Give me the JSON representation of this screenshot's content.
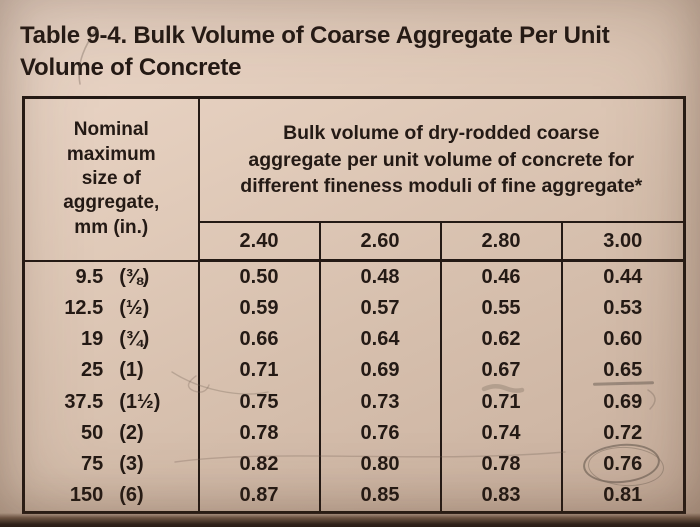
{
  "title": {
    "line1": "Table 9-4. Bulk Volume of Coarse Aggregate Per Unit",
    "line2": "Volume of Concrete"
  },
  "table": {
    "col1_header_lines": [
      "Nominal",
      "maximum",
      "size of",
      "aggregate,",
      "mm  (in.)"
    ],
    "span_header_lines": [
      "Bulk volume of dry-rodded coarse",
      "aggregate per unit volume of concrete for",
      "different fineness moduli of fine aggregate*"
    ],
    "fineness_moduli": [
      "2.40",
      "2.60",
      "2.80",
      "3.00"
    ],
    "rows": [
      {
        "size_mm": "9.5",
        "size_in": "(⅜)",
        "values": [
          "0.50",
          "0.48",
          "0.46",
          "0.44"
        ]
      },
      {
        "size_mm": "12.5",
        "size_in": "(½)",
        "values": [
          "0.59",
          "0.57",
          "0.55",
          "0.53"
        ]
      },
      {
        "size_mm": "19",
        "size_in": "(¾)",
        "values": [
          "0.66",
          "0.64",
          "0.62",
          "0.60"
        ]
      },
      {
        "size_mm": "25",
        "size_in": "(1)",
        "values": [
          "0.71",
          "0.69",
          "0.67",
          "0.65"
        ]
      },
      {
        "size_mm": "37.5",
        "size_in": "(1½)",
        "values": [
          "0.75",
          "0.73",
          "0.71",
          "0.69"
        ]
      },
      {
        "size_mm": "50",
        "size_in": "(2)",
        "values": [
          "0.78",
          "0.76",
          "0.74",
          "0.72"
        ]
      },
      {
        "size_mm": "75",
        "size_in": "(3)",
        "values": [
          "0.82",
          "0.80",
          "0.78",
          "0.76"
        ]
      },
      {
        "size_mm": "150",
        "size_in": "(6)",
        "values": [
          "0.87",
          "0.85",
          "0.83",
          "0.81"
        ]
      }
    ],
    "annotations": {
      "pencil_circle": {
        "row": 6,
        "col": 3,
        "note": "value 0.76 circled in pencil"
      },
      "pencil_underline": {
        "row": 3,
        "col": 3,
        "note": "value 0.65 underlined in pencil"
      }
    }
  },
  "colors": {
    "paper": "#d9c3b2",
    "ink": "#241a15",
    "pencil": "#76685c"
  }
}
